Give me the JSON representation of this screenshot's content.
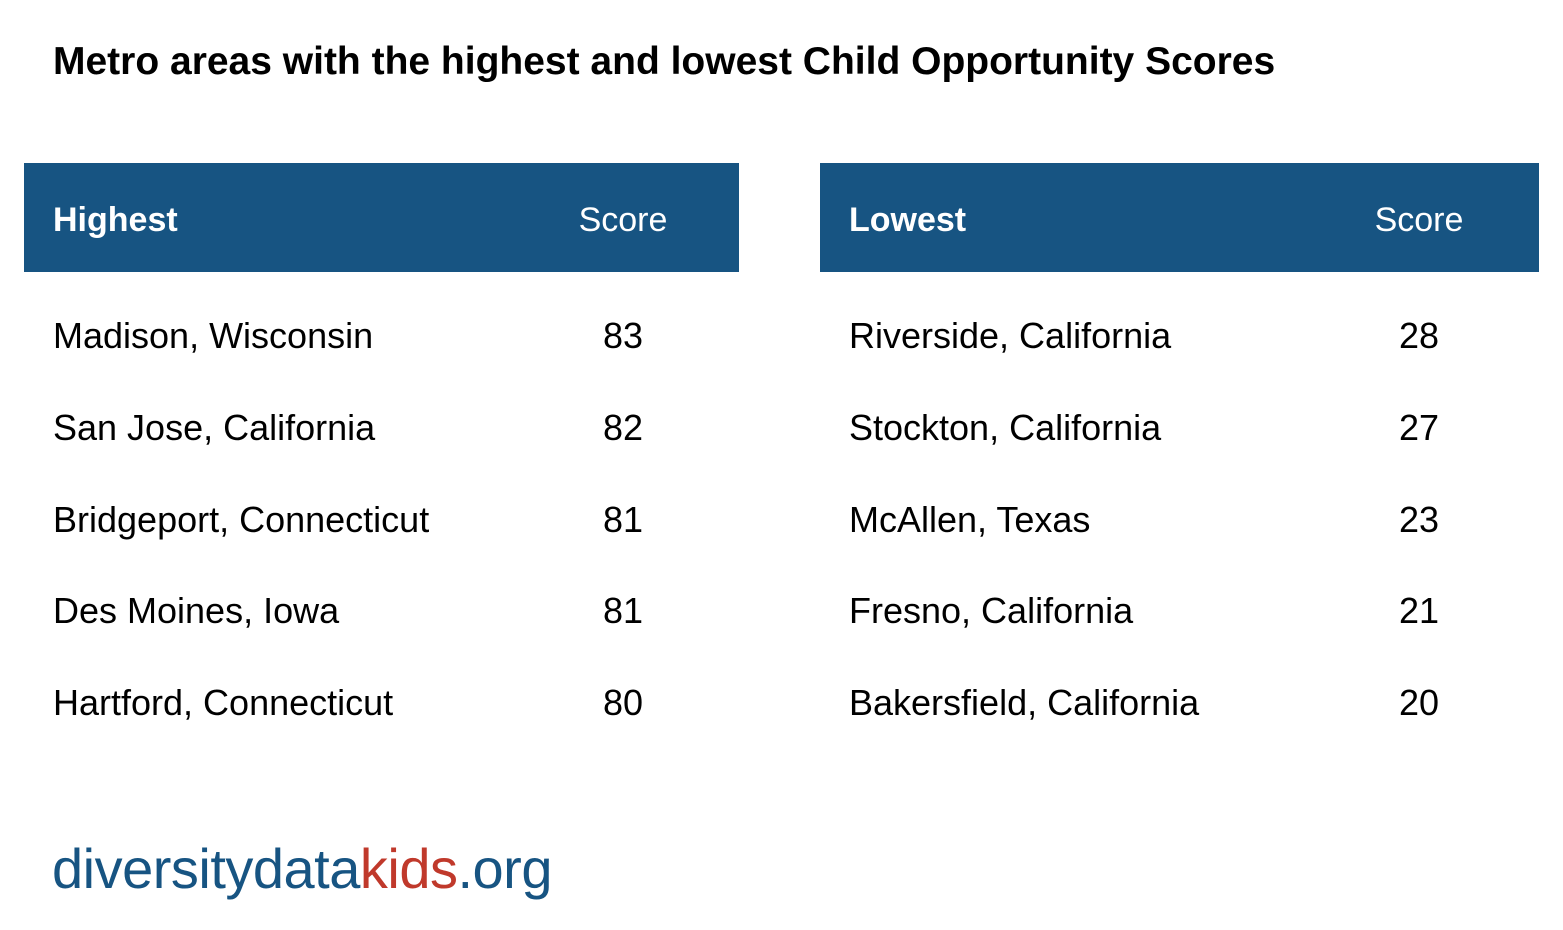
{
  "title": "Metro areas with the highest and lowest Child Opportunity Scores",
  "colors": {
    "header_bg": "#175482",
    "header_text": "#ffffff",
    "logo_blue": "#175482",
    "logo_red": "#c0392b"
  },
  "chart_data": [
    {
      "type": "table",
      "columns": [
        "Highest",
        "Score"
      ],
      "rows": [
        {
          "metro": "Madison, Wisconsin",
          "score": "83"
        },
        {
          "metro": "San Jose, California",
          "score": "82"
        },
        {
          "metro": "Bridgeport, Connecticut",
          "score": "81"
        },
        {
          "metro": "Des Moines, Iowa",
          "score": "81"
        },
        {
          "metro": "Hartford, Connecticut",
          "score": "80"
        }
      ]
    },
    {
      "type": "table",
      "columns": [
        "Lowest",
        "Score"
      ],
      "rows": [
        {
          "metro": "Riverside, California",
          "score": "28"
        },
        {
          "metro": "Stockton, California",
          "score": "27"
        },
        {
          "metro": "McAllen, Texas",
          "score": "23"
        },
        {
          "metro": "Fresno, California",
          "score": "21"
        },
        {
          "metro": "Bakersfield, California",
          "score": "20"
        }
      ]
    }
  ],
  "logo": {
    "part1": "diversitydata",
    "part2": "kids",
    "part3": ".org"
  }
}
